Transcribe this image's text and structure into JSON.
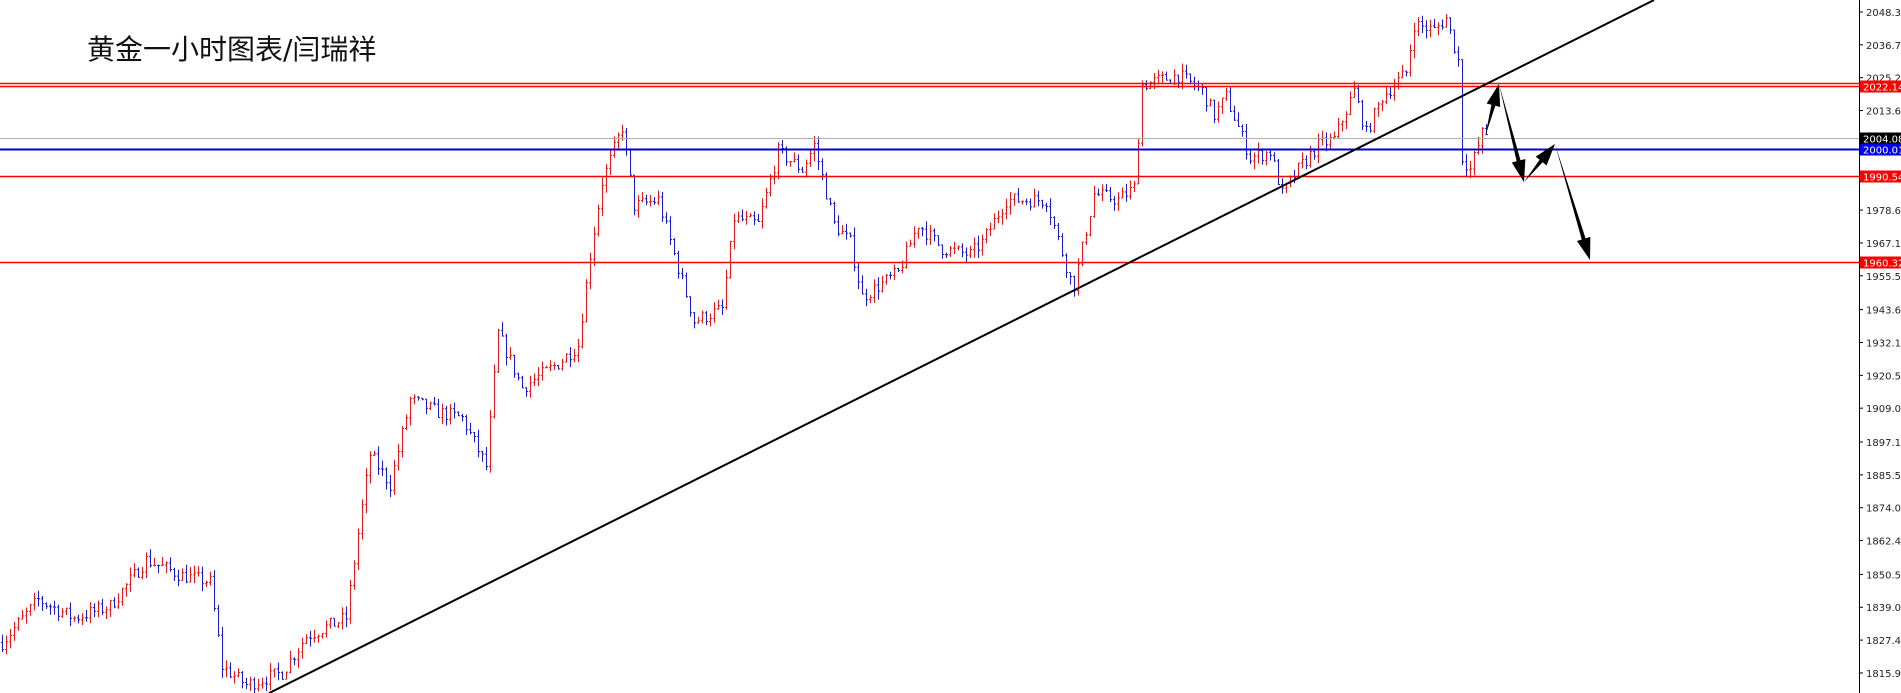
{
  "title": "黄金一小时图表/闫瑞祥",
  "chart_data": {
    "type": "ohlc",
    "title": "黄金一小时图表/闫瑞祥",
    "colors": {
      "up": "#e8191b",
      "down": "#1a1ad0",
      "support_resistance": "#ff0000",
      "pivot": "#0000cc",
      "current": "#b0b0b0",
      "trendline": "#000000",
      "arrows": "#000000"
    },
    "y_axis": {
      "position": "right",
      "ylim": [
        1811.0,
        2052.5
      ],
      "tick_labels": [
        "2048.30",
        "2036.75",
        "2025.20",
        "2013.65",
        "1978.65",
        "1967.10",
        "1955.55",
        "1943.65",
        "1932.10",
        "1920.55",
        "1909.00",
        "1897.10",
        "1885.55",
        "1874.00",
        "1862.45",
        "1850.55",
        "1839.00",
        "1827.45",
        "1815.90"
      ]
    },
    "grid": false,
    "price_path_anchors": {
      "bar": [
        0,
        9,
        18,
        27,
        36,
        45,
        52,
        55,
        61,
        70,
        76,
        86,
        89,
        92,
        97,
        102,
        109,
        115,
        121,
        124,
        130,
        139,
        144,
        147,
        150,
        155,
        158,
        164,
        168,
        173,
        180,
        183,
        189,
        194,
        200,
        203,
        208,
        212,
        215,
        224,
        229,
        235,
        242,
        245,
        251,
        261,
        267,
        268,
        273,
        279,
        283,
        285,
        294,
        300,
        303,
        306,
        312,
        317,
        320,
        324,
        329,
        333,
        338,
        341,
        345,
        351,
        353,
        358,
        361,
        364,
        365,
        367,
        370,
        371
      ],
      "price": [
        1826.6,
        1841.6,
        1835.2,
        1839.4,
        1855.6,
        1850.1,
        1847.9,
        1818.1,
        1811.7,
        1816.0,
        1828.8,
        1835.2,
        1865.0,
        1892.7,
        1882.1,
        1911.9,
        1907.6,
        1905.5,
        1888.5,
        1935.3,
        1916.2,
        1924.7,
        1931.1,
        1963.0,
        1988.6,
        2007.8,
        1980.1,
        1982.2,
        1963.0,
        1939.6,
        1943.8,
        1975.8,
        1973.7,
        1999.2,
        1992.9,
        2001.4,
        1973.7,
        1967.3,
        1948.1,
        1956.6,
        1973.7,
        1965.1,
        1963.0,
        1967.3,
        1982.2,
        1982.2,
        1954.5,
        1952.4,
        1984.3,
        1982.2,
        1986.5,
        2022.7,
        2026.1,
        2020.6,
        2012.0,
        2018.4,
        1997.1,
        1999.2,
        1984.3,
        1992.9,
        2001.4,
        2003.5,
        2020.6,
        2005.6,
        2018.4,
        2027.0,
        2044.0,
        2041.9,
        2046.1,
        2031.2,
        1997.1,
        1992.9,
        2005.6,
        2005.6
      ]
    },
    "horizontal_lines": [
      {
        "price": 2022.14,
        "label": "2022.14",
        "color": "#ff0000",
        "double": true
      },
      {
        "price": 2004.08,
        "label": "2004.08",
        "color": "#b0b0b0",
        "tag_color": "#000000"
      },
      {
        "price": 2000.01,
        "label": "2000.01",
        "color": "#0000cc",
        "tag_color": "#0000ee"
      },
      {
        "price": 1990.54,
        "label": "1990.54",
        "color": "#ff0000"
      },
      {
        "price": 1960.32,
        "label": "1960.32",
        "color": "#ff0000"
      }
    ],
    "trendline": {
      "from": {
        "bar": 66.75,
        "price": 1808.8
      },
      "to": {
        "bar": 413,
        "price": 2052.5
      }
    },
    "projection_arrows": [
      {
        "from": {
          "bar": 370.75,
          "price": 2004.35
        },
        "to": {
          "bar": 374.25,
          "price": 2023.0
        }
      },
      {
        "from": {
          "bar": 374.25,
          "price": 2023.0
        },
        "to": {
          "bar": 380.5,
          "price": 1988.5
        }
      },
      {
        "from": {
          "bar": 380.5,
          "price": 1988.5
        },
        "to": {
          "bar": 388.25,
          "price": 2001.9
        }
      },
      {
        "from": {
          "bar": 388.25,
          "price": 2001.9
        },
        "to": {
          "bar": 397,
          "price": 1961.1
        }
      }
    ]
  }
}
